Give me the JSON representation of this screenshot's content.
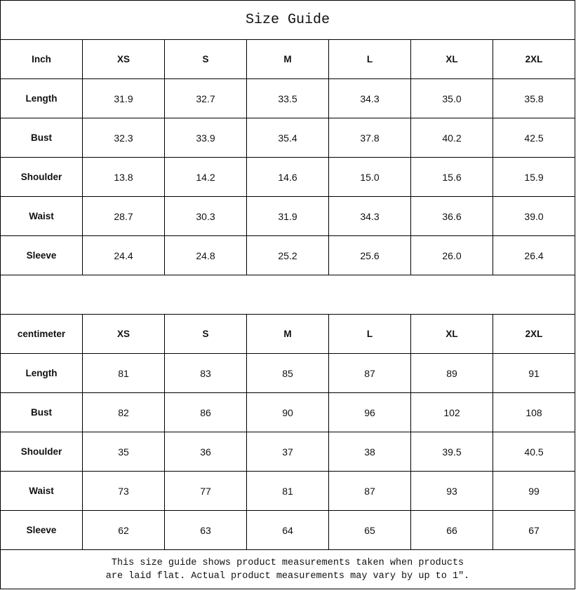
{
  "title": "Size Guide",
  "sizes": [
    "XS",
    "S",
    "M",
    "L",
    "XL",
    "2XL"
  ],
  "tables": [
    {
      "unit_label": "Inch",
      "rows": [
        {
          "label": "Length",
          "values": [
            "31.9",
            "32.7",
            "33.5",
            "34.3",
            "35.0",
            "35.8"
          ]
        },
        {
          "label": "Bust",
          "values": [
            "32.3",
            "33.9",
            "35.4",
            "37.8",
            "40.2",
            "42.5"
          ]
        },
        {
          "label": "Shoulder",
          "values": [
            "13.8",
            "14.2",
            "14.6",
            "15.0",
            "15.6",
            "15.9"
          ]
        },
        {
          "label": "Waist",
          "values": [
            "28.7",
            "30.3",
            "31.9",
            "34.3",
            "36.6",
            "39.0"
          ]
        },
        {
          "label": "Sleeve",
          "values": [
            "24.4",
            "24.8",
            "25.2",
            "25.6",
            "26.0",
            "26.4"
          ]
        }
      ]
    },
    {
      "unit_label": "centimeter",
      "rows": [
        {
          "label": "Length",
          "values": [
            "81",
            "83",
            "85",
            "87",
            "89",
            "91"
          ]
        },
        {
          "label": "Bust",
          "values": [
            "82",
            "86",
            "90",
            "96",
            "102",
            "108"
          ]
        },
        {
          "label": "Shoulder",
          "values": [
            "35",
            "36",
            "37",
            "38",
            "39.5",
            "40.5"
          ]
        },
        {
          "label": "Waist",
          "values": [
            "73",
            "77",
            "81",
            "87",
            "93",
            "99"
          ]
        },
        {
          "label": "Sleeve",
          "values": [
            "62",
            "63",
            "64",
            "65",
            "66",
            "67"
          ]
        }
      ]
    }
  ],
  "note": {
    "line1": "This size guide shows product measurements taken when products",
    "line2": "are laid flat. Actual product measurements may vary by up to 1″."
  }
}
